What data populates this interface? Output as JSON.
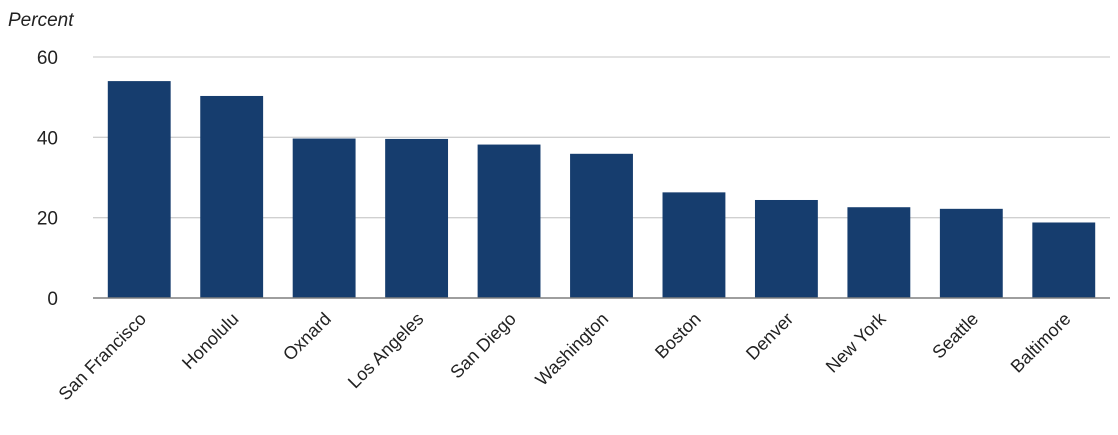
{
  "chart_data": {
    "type": "bar",
    "title": "",
    "xlabel": "",
    "ylabel": "Percent",
    "ylim": [
      0,
      60
    ],
    "yticks": [
      0,
      20,
      40,
      60
    ],
    "grid": true,
    "legend": "none",
    "colors": {
      "bar": "#163d6e",
      "grid": "#d0d0d0",
      "axis": "#7f7f7f"
    },
    "categories": [
      "San Francisco",
      "Honolulu",
      "Oxnard",
      "Los Angeles",
      "San Diego",
      "Washington",
      "Boston",
      "Denver",
      "New York",
      "Seattle",
      "Baltimore"
    ],
    "values": [
      54.0,
      50.3,
      39.7,
      39.6,
      38.2,
      35.9,
      26.3,
      24.4,
      22.6,
      22.2,
      18.8
    ]
  }
}
